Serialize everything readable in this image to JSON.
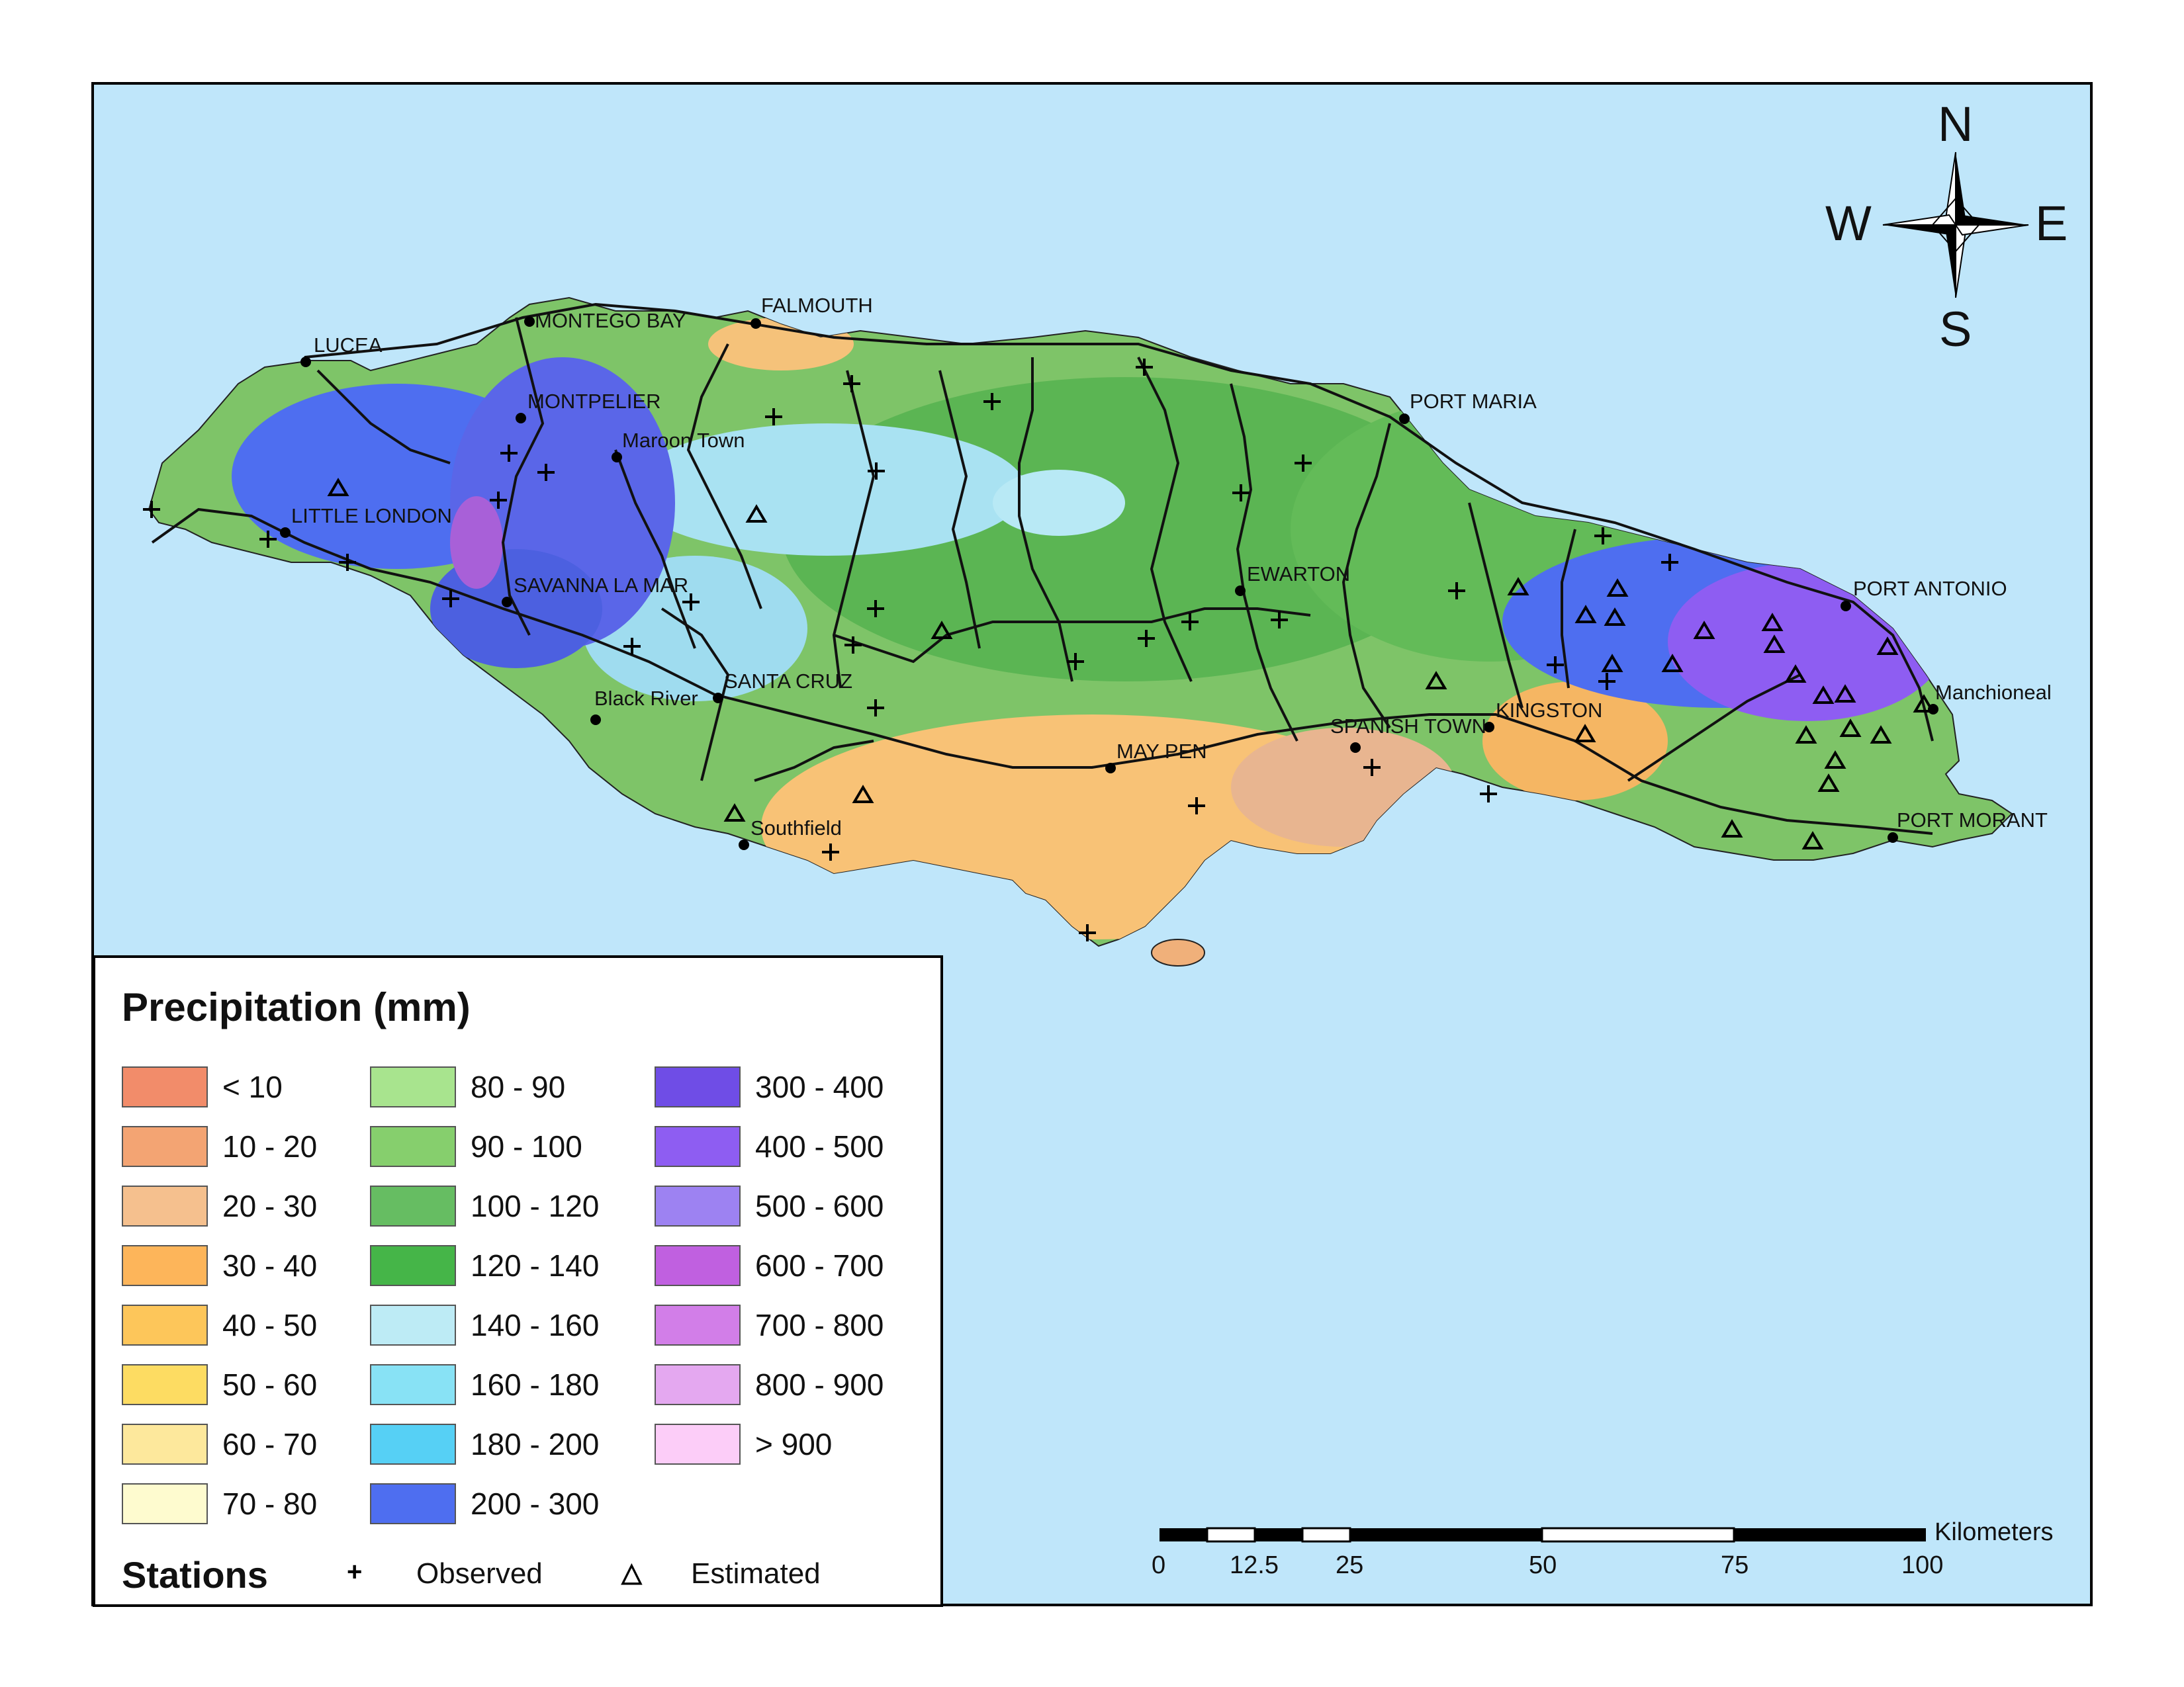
{
  "colors": {
    "sea": "#bfe6fa",
    "frame": "#000000",
    "roads": "#111111"
  },
  "places": [
    {
      "name": "LUCEA",
      "role": "town"
    },
    {
      "name": "MONTEGO BAY",
      "role": "town"
    },
    {
      "name": "FALMOUTH",
      "role": "town"
    },
    {
      "name": "MONTPELIER",
      "role": "town"
    },
    {
      "name": "Maroon Town",
      "role": "town"
    },
    {
      "name": "PORT MARIA",
      "role": "town"
    },
    {
      "name": "LITTLE LONDON",
      "role": "town"
    },
    {
      "name": "SAVANNA LA MAR",
      "role": "town"
    },
    {
      "name": "EWARTON",
      "role": "town"
    },
    {
      "name": "PORT ANTONIO",
      "role": "town"
    },
    {
      "name": "Black River",
      "role": "town"
    },
    {
      "name": "SANTA CRUZ",
      "role": "town"
    },
    {
      "name": "Manchioneal",
      "role": "town"
    },
    {
      "name": "KINGSTON",
      "role": "town"
    },
    {
      "name": "SPANISH TOWN",
      "role": "town"
    },
    {
      "name": "MAY PEN",
      "role": "town"
    },
    {
      "name": "Southfield",
      "role": "town"
    },
    {
      "name": "PORT MORANT",
      "role": "town"
    }
  ],
  "compass": {
    "n": "N",
    "s": "S",
    "e": "E",
    "w": "W"
  },
  "legend": {
    "title": "Precipitation (mm)",
    "classes": [
      {
        "label": "< 10",
        "color": "#f28c6a"
      },
      {
        "label": "10 - 20",
        "color": "#f3a473"
      },
      {
        "label": "20 - 30",
        "color": "#f5c08e"
      },
      {
        "label": "30 - 40",
        "color": "#fdb55a"
      },
      {
        "label": "40 - 50",
        "color": "#fdc65a"
      },
      {
        "label": "50 - 60",
        "color": "#fddc62"
      },
      {
        "label": "60 - 70",
        "color": "#fde89c"
      },
      {
        "label": "70 - 80",
        "color": "#fefbcf"
      },
      {
        "label": "80 - 90",
        "color": "#a8e48e"
      },
      {
        "label": "90 - 100",
        "color": "#86cf6d"
      },
      {
        "label": "100 - 120",
        "color": "#66bd62"
      },
      {
        "label": "120 - 140",
        "color": "#45b548"
      },
      {
        "label": "140 - 160",
        "color": "#bdebf5"
      },
      {
        "label": "160 - 180",
        "color": "#88e2f5"
      },
      {
        "label": "180 - 200",
        "color": "#56d0f5"
      },
      {
        "label": "200 - 300",
        "color": "#4e6ef0"
      },
      {
        "label": "300 - 400",
        "color": "#6f4de6"
      },
      {
        "label": "400 - 500",
        "color": "#8e5df2"
      },
      {
        "label": "500 - 600",
        "color": "#9d82f2"
      },
      {
        "label": "600 - 700",
        "color": "#c060e0"
      },
      {
        "label": "700 - 800",
        "color": "#d27ee8"
      },
      {
        "label": "800 - 900",
        "color": "#e4a8f0"
      },
      {
        "label": "> 900",
        "color": "#fccdf8"
      }
    ],
    "stations_title": "Stations",
    "observed_label": "Observed",
    "estimated_label": "Estimated"
  },
  "scale_bar": {
    "unit": "Kilometers",
    "ticks": [
      "0",
      "12.5",
      "25",
      "50",
      "75",
      "100"
    ]
  }
}
